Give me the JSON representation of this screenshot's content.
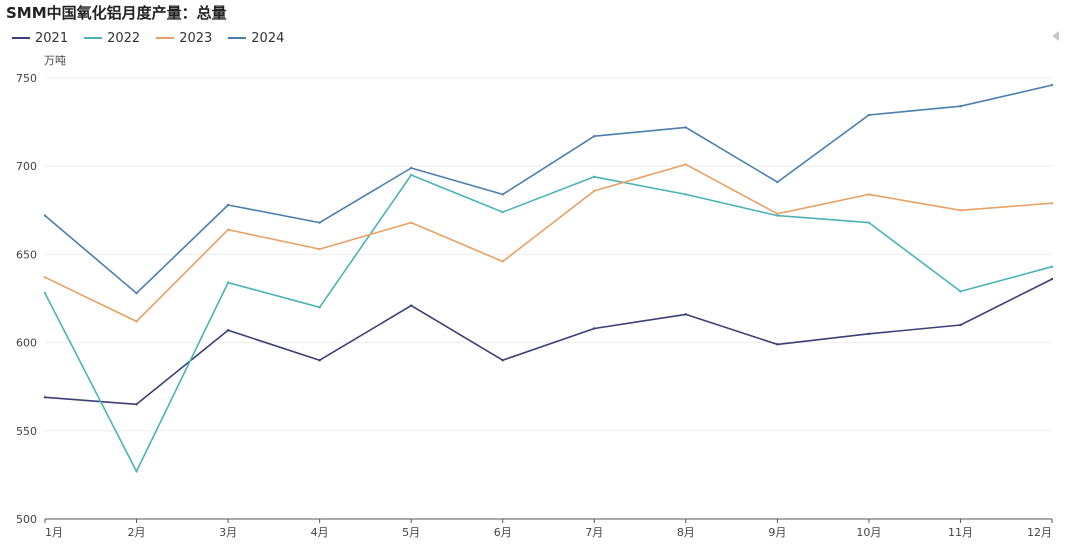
{
  "title": "SMM中国氧化铝月度产量：总量",
  "chart_data": {
    "type": "line",
    "title": "SMM中国氧化铝月度产量：总量",
    "ylabel": "万吨",
    "xlabel": "",
    "categories": [
      "1月",
      "2月",
      "3月",
      "4月",
      "5月",
      "6月",
      "7月",
      "8月",
      "9月",
      "10月",
      "11月",
      "12月"
    ],
    "ylim": [
      500,
      750
    ],
    "yticks": [
      "750",
      "700",
      "650",
      "600",
      "550",
      "500"
    ],
    "grid": true,
    "legend_position": "top-left",
    "series": [
      {
        "name": "2021",
        "color": "#3b3f73",
        "values": [
          569,
          565,
          607,
          590,
          621,
          590,
          608,
          616,
          599,
          605,
          610,
          636
        ]
      },
      {
        "name": "2022",
        "color": "#4bb3b7",
        "values": [
          628,
          527,
          634,
          620,
          695,
          674,
          694,
          684,
          672,
          668,
          629,
          643
        ]
      },
      {
        "name": "2023",
        "color": "#e8a165",
        "values": [
          637,
          612,
          664,
          653,
          668,
          646,
          686,
          701,
          673,
          684,
          675,
          679
        ]
      },
      {
        "name": "2024",
        "color": "#4a7fad",
        "values": [
          672,
          628,
          678,
          668,
          699,
          684,
          717,
          722,
          691,
          729,
          734,
          746
        ]
      }
    ]
  }
}
